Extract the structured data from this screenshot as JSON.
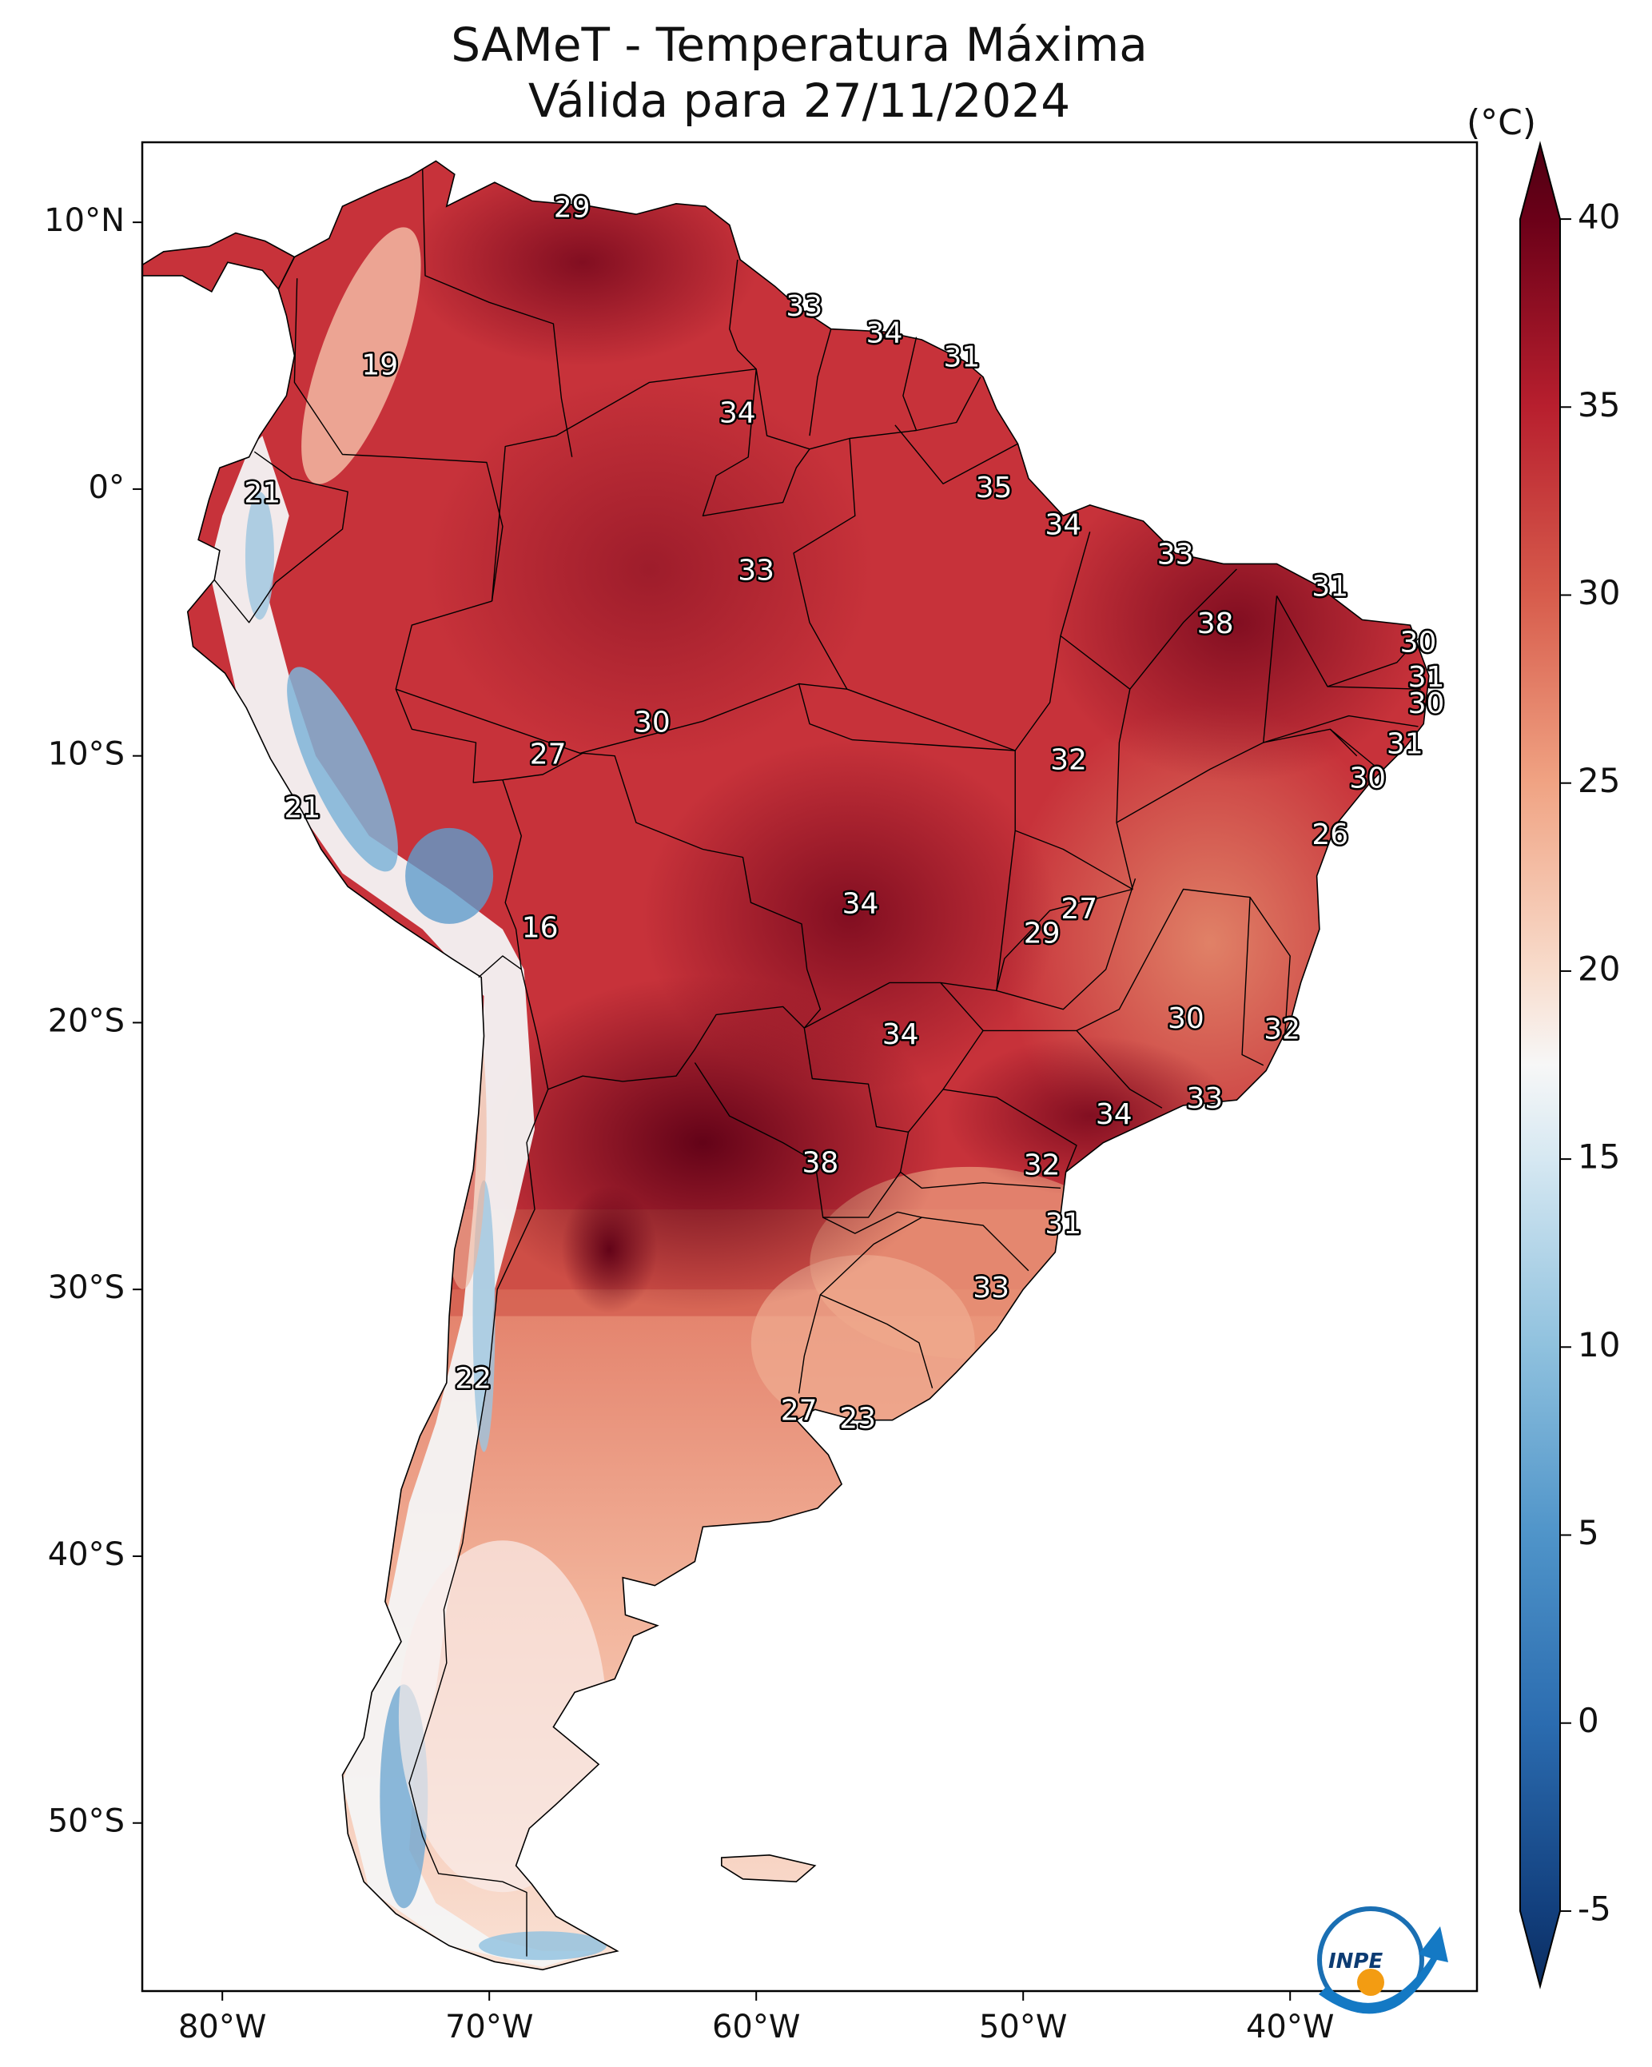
{
  "title_line1": "SAMeT - Temperatura Máxima",
  "title_line2": "Válida para 27/11/2024",
  "colorbar": {
    "unit": "(°C)",
    "ticks": [
      "40",
      "35",
      "30",
      "25",
      "20",
      "15",
      "10",
      "5",
      "0",
      "-5"
    ],
    "stops": [
      {
        "value": -7,
        "color": "#0b2c5f"
      },
      {
        "value": -5,
        "color": "#123f7d"
      },
      {
        "value": 0,
        "color": "#2b6cb0"
      },
      {
        "value": 5,
        "color": "#4f94c9"
      },
      {
        "value": 10,
        "color": "#8fc1de"
      },
      {
        "value": 15,
        "color": "#d6e8f2"
      },
      {
        "value": 17.5,
        "color": "#f7f7f7"
      },
      {
        "value": 20,
        "color": "#f8dccc"
      },
      {
        "value": 25,
        "color": "#f0a383"
      },
      {
        "value": 30,
        "color": "#d75c4c"
      },
      {
        "value": 35,
        "color": "#b81f2e"
      },
      {
        "value": 40,
        "color": "#6b0018"
      },
      {
        "value": 42,
        "color": "#4d0012"
      }
    ]
  },
  "lat_labels": [
    "10°N",
    "0°",
    "10°S",
    "20°S",
    "30°S",
    "40°S",
    "50°S"
  ],
  "lon_labels": [
    "80°W",
    "70°W",
    "60°W",
    "50°W",
    "40°W"
  ],
  "city_values": [
    {
      "v": "29",
      "lon": -66.9,
      "lat": 10.5
    },
    {
      "v": "19",
      "lon": -74.1,
      "lat": 4.6
    },
    {
      "v": "21",
      "lon": -78.5,
      "lat": -0.2
    },
    {
      "v": "33",
      "lon": -58.2,
      "lat": 6.8
    },
    {
      "v": "34",
      "lon": -55.2,
      "lat": 5.8
    },
    {
      "v": "31",
      "lon": -52.3,
      "lat": 4.9
    },
    {
      "v": "34",
      "lon": -60.7,
      "lat": 2.8
    },
    {
      "v": "35",
      "lon": -51.1,
      "lat": 0.0
    },
    {
      "v": "34",
      "lon": -48.5,
      "lat": -1.4
    },
    {
      "v": "33",
      "lon": -44.3,
      "lat": -2.5
    },
    {
      "v": "33",
      "lon": -60.0,
      "lat": -3.1
    },
    {
      "v": "31",
      "lon": -38.5,
      "lat": -3.7
    },
    {
      "v": "38",
      "lon": -42.8,
      "lat": -5.1
    },
    {
      "v": "30",
      "lon": -35.2,
      "lat": -5.8
    },
    {
      "v": "31",
      "lon": -34.9,
      "lat": -7.1
    },
    {
      "v": "30",
      "lon": -34.9,
      "lat": -8.1
    },
    {
      "v": "31",
      "lon": -35.7,
      "lat": -9.6
    },
    {
      "v": "30",
      "lon": -37.1,
      "lat": -10.9
    },
    {
      "v": "30",
      "lon": -63.9,
      "lat": -8.8
    },
    {
      "v": "27",
      "lon": -67.8,
      "lat": -10.0
    },
    {
      "v": "32",
      "lon": -48.3,
      "lat": -10.2
    },
    {
      "v": "26",
      "lon": -38.5,
      "lat": -13.0
    },
    {
      "v": "21",
      "lon": -77.0,
      "lat": -12.0
    },
    {
      "v": "34",
      "lon": -56.1,
      "lat": -15.6
    },
    {
      "v": "27",
      "lon": -47.9,
      "lat": -15.8
    },
    {
      "v": "29",
      "lon": -49.3,
      "lat": -16.7
    },
    {
      "v": "16",
      "lon": -68.1,
      "lat": -16.5
    },
    {
      "v": "30",
      "lon": -43.9,
      "lat": -19.9
    },
    {
      "v": "32",
      "lon": -40.3,
      "lat": -20.3
    },
    {
      "v": "34",
      "lon": -54.6,
      "lat": -20.5
    },
    {
      "v": "33",
      "lon": -43.2,
      "lat": -22.9
    },
    {
      "v": "34",
      "lon": -46.6,
      "lat": -23.5
    },
    {
      "v": "38",
      "lon": -57.6,
      "lat": -25.3
    },
    {
      "v": "32",
      "lon": -49.3,
      "lat": -25.4
    },
    {
      "v": "31",
      "lon": -48.5,
      "lat": -27.6
    },
    {
      "v": "33",
      "lon": -51.2,
      "lat": -30.0
    },
    {
      "v": "22",
      "lon": -70.6,
      "lat": -33.4
    },
    {
      "v": "27",
      "lon": -58.4,
      "lat": -34.6
    },
    {
      "v": "23",
      "lon": -56.2,
      "lat": -34.9
    }
  ],
  "logo": {
    "text": "INPE"
  }
}
